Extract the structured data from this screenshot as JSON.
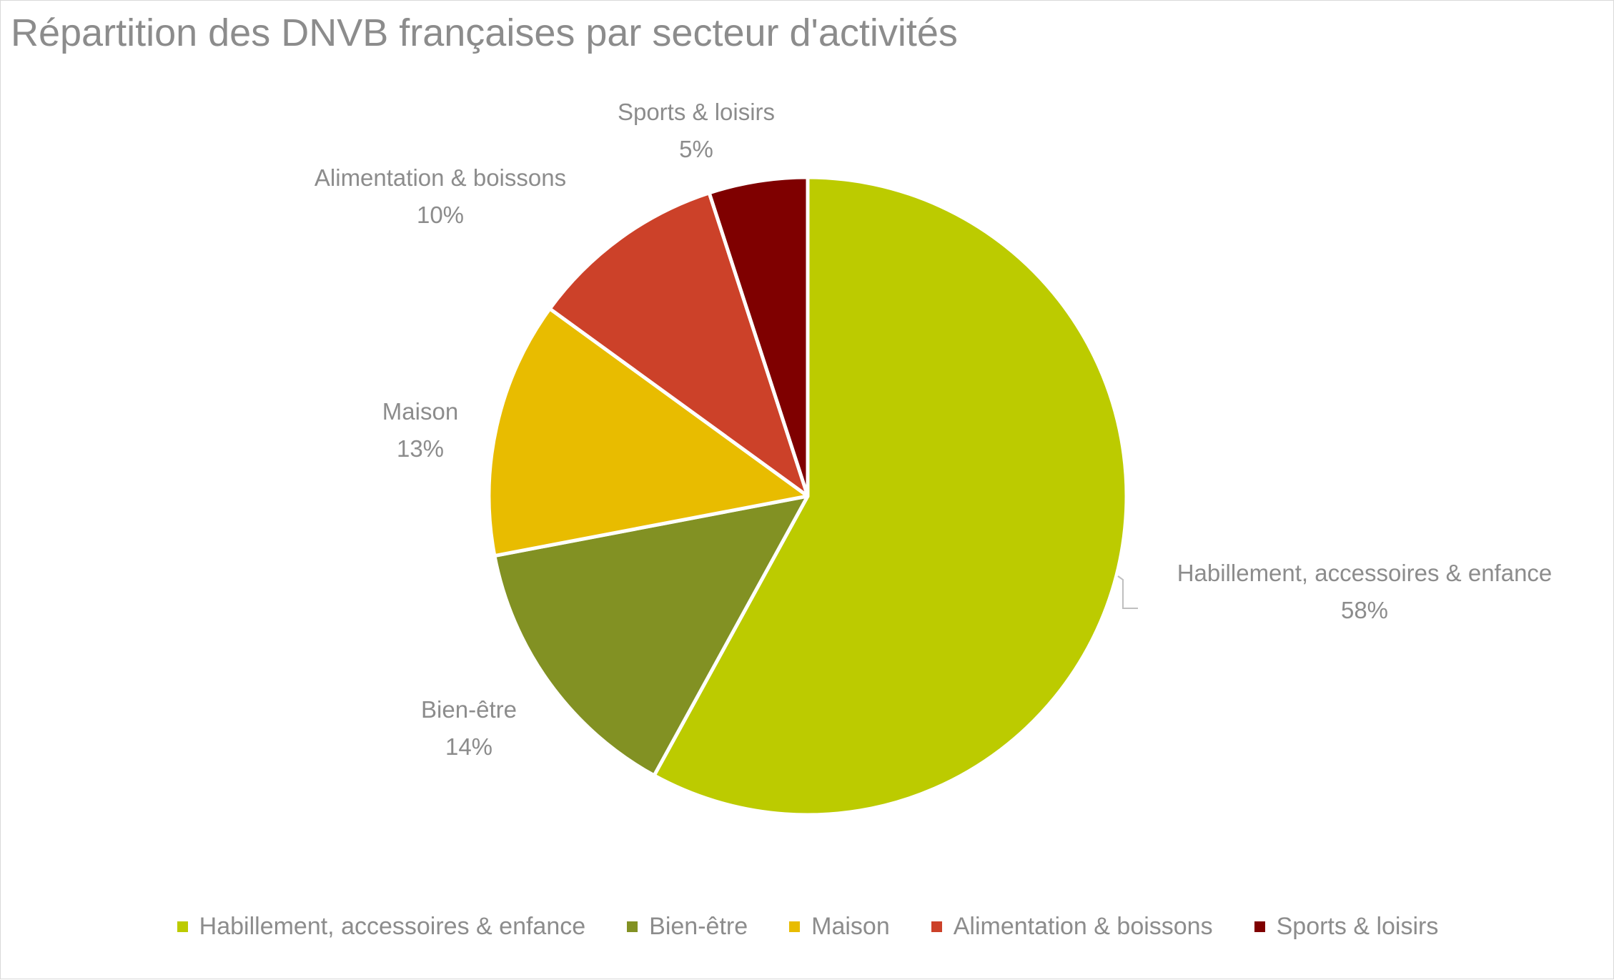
{
  "chart_data": {
    "type": "pie",
    "title": "Répartition des DNVB françaises par secteur d'activités",
    "legend_position": "bottom",
    "slices": [
      {
        "label": "Habillement, accessoires & enfance",
        "value": 58,
        "display": "58%",
        "color": "#bccb00"
      },
      {
        "label": "Bien-être",
        "value": 14,
        "display": "14%",
        "color": "#829123"
      },
      {
        "label": "Maison",
        "value": 13,
        "display": "13%",
        "color": "#e8bc00"
      },
      {
        "label": "Alimentation & boissons",
        "value": 10,
        "display": "10%",
        "color": "#cc4129"
      },
      {
        "label": "Sports & loisirs",
        "value": 5,
        "display": "5%",
        "color": "#7f0000"
      }
    ]
  }
}
